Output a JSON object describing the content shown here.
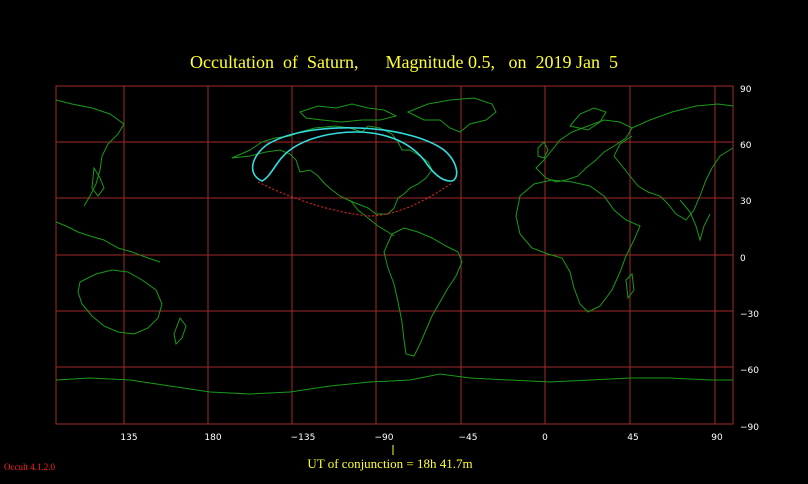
{
  "title": "Occultation  of  Saturn,      Magnitude 0.5,   on  2019 Jan  5",
  "x_ticks": [
    "135",
    "180",
    "−135",
    "−90",
    "−45",
    "0",
    "45",
    "90"
  ],
  "y_ticks": [
    "90",
    "60",
    "30",
    "0",
    "−30",
    "−60",
    "−90"
  ],
  "conjunction_label": "UT of conjunction = 18h 41.7m",
  "version": "Occult 4.1.2.0",
  "colors": {
    "grid": "#a02a2a",
    "coast": "#1a9a1a",
    "visibility_curve": "#33dddd",
    "daylight_curve": "#cc2222",
    "title": "#ffff33",
    "tick_text": "#ffffff",
    "version": "#ff2222"
  }
}
